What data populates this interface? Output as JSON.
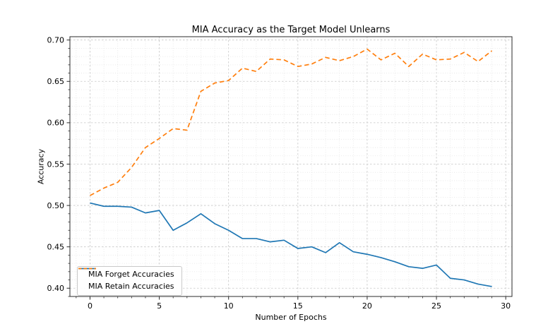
{
  "chart_data": {
    "type": "line",
    "title": "MIA Accuracy as the Target Model Unlearns",
    "xlabel": "Number of Epochs",
    "ylabel": "Accuracy",
    "x": [
      0,
      1,
      2,
      3,
      4,
      5,
      6,
      7,
      8,
      9,
      10,
      11,
      12,
      13,
      14,
      15,
      16,
      17,
      18,
      19,
      20,
      21,
      22,
      23,
      24,
      25,
      26,
      27,
      28,
      29
    ],
    "series": [
      {
        "name": "MIA Forget Accuracies",
        "color": "#1f77b4",
        "line_style": "solid",
        "values": [
          0.503,
          0.499,
          0.499,
          0.498,
          0.491,
          0.494,
          0.47,
          0.479,
          0.49,
          0.478,
          0.47,
          0.46,
          0.46,
          0.456,
          0.458,
          0.448,
          0.45,
          0.443,
          0.455,
          0.444,
          0.441,
          0.437,
          0.432,
          0.426,
          0.424,
          0.428,
          0.412,
          0.41,
          0.405,
          0.402
        ]
      },
      {
        "name": "MIA Retain Accuracies",
        "color": "#ff7f0e",
        "line_style": "dashed",
        "values": [
          0.512,
          0.521,
          0.528,
          0.546,
          0.57,
          0.581,
          0.593,
          0.591,
          0.638,
          0.648,
          0.651,
          0.666,
          0.662,
          0.677,
          0.676,
          0.668,
          0.671,
          0.679,
          0.675,
          0.68,
          0.689,
          0.676,
          0.684,
          0.668,
          0.683,
          0.676,
          0.677,
          0.685,
          0.674,
          0.687
        ]
      }
    ],
    "xlim": [
      -1.45,
      30.45
    ],
    "ylim": [
      0.39,
      0.704
    ],
    "x_major_ticks": [
      0,
      5,
      10,
      15,
      20,
      25,
      30
    ],
    "x_minor_step": 1,
    "y_major_ticks": [
      0.4,
      0.45,
      0.5,
      0.55,
      0.6,
      0.65,
      0.7
    ],
    "y_minor_step": 0.01,
    "y_tick_decimals": 2,
    "grid": "both",
    "legend_position": "lower left"
  }
}
